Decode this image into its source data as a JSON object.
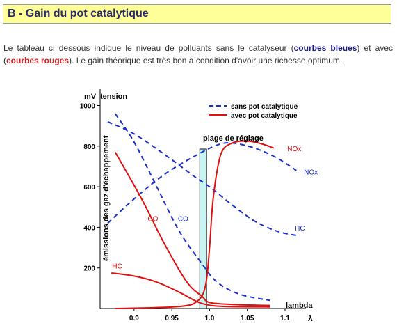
{
  "header": {
    "title": "B - Gain du pot catalytique"
  },
  "intro": {
    "part1": "Le tableau ci dessous indique le niveau de polluants sans le catalyseur (",
    "blue_label": "courbes bleues",
    "part2": ") et avec (",
    "red_label": "courbes rouges",
    "part3": "). Le gain théorique est très bon à condition d'avoir une richesse optimum."
  },
  "colors": {
    "blue": "#1a2fd0",
    "red": "#e01010",
    "band": "#c8f4f4"
  },
  "chart_data": {
    "type": "line",
    "ylabel_top_unit": "mV",
    "ylabel_top": "tension",
    "ylabel_side": "émissions des gaz d'échappement",
    "xlabel": "lambda",
    "xsymbol": "λ",
    "xlim": [
      0.855,
      1.135
    ],
    "ylim": [
      0,
      1060
    ],
    "xticks": [
      "0.9",
      "0.95",
      "1.0",
      "1.05",
      "1.1"
    ],
    "xtick_values": [
      0.9,
      0.95,
      1.0,
      1.05,
      1.1
    ],
    "yticks": [
      "200",
      "400",
      "600",
      "800",
      "1000"
    ],
    "ytick_values": [
      200,
      400,
      600,
      800,
      1000
    ],
    "band": {
      "label": "plage de réglage",
      "x": [
        0.987,
        0.996
      ]
    },
    "legend": {
      "placement": "top-right",
      "entries": [
        {
          "label": "sans pot catalytique",
          "color": "#1a2fd0",
          "style": "dashed"
        },
        {
          "label": "avec pot catalytique",
          "color": "#e01010",
          "style": "solid"
        }
      ]
    },
    "series": [
      {
        "label": "NOx",
        "color": "#1a2fd0",
        "style": "dashed",
        "x": [
          0.865,
          0.9,
          0.94,
          0.98,
          1.01,
          1.03,
          1.06,
          1.09,
          1.115
        ],
        "y": [
          420,
          540,
          660,
          750,
          805,
          815,
          790,
          740,
          680
        ]
      },
      {
        "label": "HC",
        "color": "#1a2fd0",
        "style": "dashed",
        "x": [
          0.865,
          0.9,
          0.94,
          0.98,
          1.0,
          1.03,
          1.06,
          1.09,
          1.115
        ],
        "y": [
          920,
          860,
          760,
          650,
          600,
          510,
          430,
          380,
          360
        ]
      },
      {
        "label": "CO",
        "color": "#1a2fd0",
        "style": "dashed",
        "x": [
          0.875,
          0.9,
          0.93,
          0.96,
          0.99,
          1.01,
          1.04,
          1.08
        ],
        "y": [
          960,
          820,
          600,
          380,
          220,
          130,
          70,
          40
        ]
      },
      {
        "label": "NOx",
        "color": "#e01010",
        "style": "solid",
        "x": [
          0.875,
          0.96,
          0.985,
          0.995,
          1.0,
          1.005,
          1.015,
          1.03,
          1.05,
          1.07,
          1.085
        ],
        "y": [
          0,
          10,
          40,
          120,
          300,
          550,
          760,
          815,
          825,
          810,
          790
        ]
      },
      {
        "label": "CO",
        "color": "#e01010",
        "style": "solid",
        "x": [
          0.875,
          0.91,
          0.94,
          0.97,
          0.99,
          1.0,
          1.03,
          1.08
        ],
        "y": [
          770,
          540,
          320,
          130,
          60,
          30,
          20,
          15
        ]
      },
      {
        "label": "HC",
        "color": "#e01010",
        "style": "solid",
        "x": [
          0.87,
          0.9,
          0.93,
          0.96,
          0.98,
          0.995,
          1.02,
          1.08
        ],
        "y": [
          175,
          160,
          130,
          80,
          40,
          20,
          10,
          8
        ]
      }
    ],
    "curve_labels": [
      {
        "text": "NOx",
        "color": "#e01010",
        "x": 1.103,
        "y": 775
      },
      {
        "text": "NOx",
        "color": "#1a2fd0",
        "x": 1.125,
        "y": 660
      },
      {
        "text": "HC",
        "color": "#1a2fd0",
        "x": 1.113,
        "y": 385
      },
      {
        "text": "CO",
        "color": "#e01010",
        "x": 0.918,
        "y": 430
      },
      {
        "text": "CO",
        "color": "#1a2fd0",
        "x": 0.958,
        "y": 430
      },
      {
        "text": "HC",
        "color": "#e01010",
        "x": 0.871,
        "y": 198
      }
    ]
  }
}
